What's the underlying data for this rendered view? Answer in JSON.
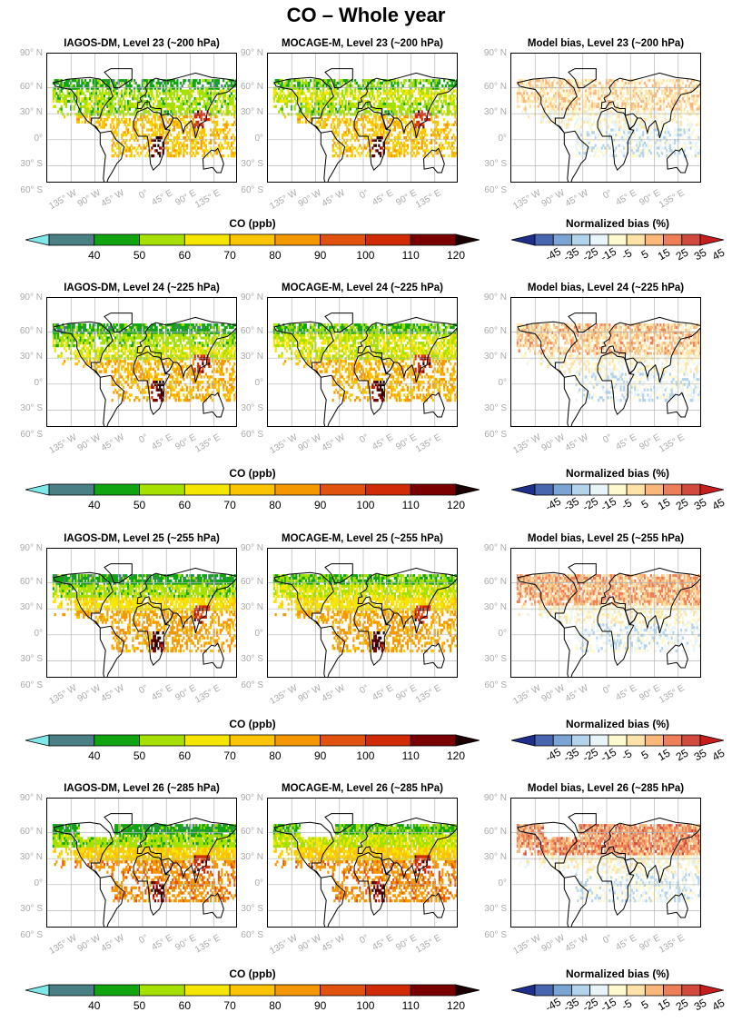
{
  "figure_title": "CO – Whole year",
  "lat_labels": [
    "90° N",
    "60° N",
    "30° N",
    "0°",
    "30° S",
    "60° S"
  ],
  "lon_labels": [
    "135° W",
    "90° W",
    "45° W",
    "0°",
    "45° E",
    "90° E",
    "135° E"
  ],
  "colors": {
    "co_under": "#7fe8e8",
    "co_over": "#1a0000",
    "co_scale": [
      "#4a7f86",
      "#10a510",
      "#a5e000",
      "#f5e600",
      "#fbc400",
      "#f59800",
      "#e0520d",
      "#d12a06",
      "#7a0000"
    ],
    "bias_under": "#1e2e8a",
    "bias_over": "#c41e1e",
    "bias_scale": [
      "#4865b0",
      "#7aa4d4",
      "#b3d3ea",
      "#e8f4f8",
      "#fff9d0",
      "#fde3a8",
      "#f9b77a",
      "#ec7f58",
      "#d24a3e"
    ]
  },
  "chart_data": [
    {
      "type": "heatmap",
      "title": "IAGOS-DM, Level 23 (~200 hPa)",
      "variable": "CO (ppb)",
      "row": 0,
      "col": 0
    },
    {
      "type": "heatmap",
      "title": "MOCAGE-M, Level 23 (~200 hPa)",
      "variable": "CO (ppb)",
      "row": 0,
      "col": 1
    },
    {
      "type": "heatmap",
      "title": "Model bias, Level 23 (~200 hPa)",
      "variable": "Normalized bias (%)",
      "row": 0,
      "col": 2
    },
    {
      "type": "heatmap",
      "title": "IAGOS-DM, Level 24 (~225 hPa)",
      "variable": "CO (ppb)",
      "row": 1,
      "col": 0
    },
    {
      "type": "heatmap",
      "title": "MOCAGE-M, Level 24 (~225 hPa)",
      "variable": "CO (ppb)",
      "row": 1,
      "col": 1
    },
    {
      "type": "heatmap",
      "title": "Model bias, Level 24 (~225 hPa)",
      "variable": "Normalized bias (%)",
      "row": 1,
      "col": 2
    },
    {
      "type": "heatmap",
      "title": "IAGOS-DM, Level 25 (~255 hPa)",
      "variable": "CO (ppb)",
      "row": 2,
      "col": 0
    },
    {
      "type": "heatmap",
      "title": "MOCAGE-M, Level 25 (~255 hPa)",
      "variable": "CO (ppb)",
      "row": 2,
      "col": 1
    },
    {
      "type": "heatmap",
      "title": "Model bias, Level 25 (~255 hPa)",
      "variable": "Normalized bias (%)",
      "row": 2,
      "col": 2
    },
    {
      "type": "heatmap",
      "title": "IAGOS-DM, Level 26 (~285 hPa)",
      "variable": "CO (ppb)",
      "row": 3,
      "col": 0
    },
    {
      "type": "heatmap",
      "title": "MOCAGE-M, Level 26 (~285 hPa)",
      "variable": "CO (ppb)",
      "row": 3,
      "col": 1
    },
    {
      "type": "heatmap",
      "title": "Model bias, Level 26 (~285 hPa)",
      "variable": "Normalized bias (%)",
      "row": 3,
      "col": 2
    }
  ],
  "co_colorbar": {
    "title": "CO (ppb)",
    "ticks": [
      "40",
      "50",
      "60",
      "70",
      "80",
      "90",
      "100",
      "110",
      "120"
    ]
  },
  "bias_colorbar": {
    "title": "Normalized bias (%)",
    "ticks": [
      "-45",
      "-35",
      "-25",
      "-15",
      "-5",
      "5",
      "15",
      "25",
      "35",
      "45"
    ]
  }
}
